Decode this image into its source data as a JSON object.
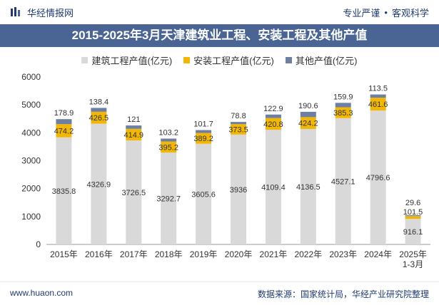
{
  "header": {
    "brand": "华经情报网",
    "tag1": "专业严谨",
    "separator": "•",
    "tag2": "客观科学"
  },
  "footer": {
    "website": "www.huaon.com",
    "source_label": "数据来源：",
    "source_text": "国家统计局，华经产业研究院整理"
  },
  "colors": {
    "building": "#d9d9d9",
    "install": "#f2b705",
    "other": "#6e7fa2",
    "title_bar": "#4a6494",
    "brand": "#1f3b6f"
  },
  "chart_data": {
    "type": "bar",
    "stacked": true,
    "title": "2015-2025年3月天津建筑业工程、安装工程及其他产值",
    "categories": [
      "2015年",
      "2016年",
      "2017年",
      "2018年",
      "2019年",
      "2020年",
      "2021年",
      "2022年",
      "2023年",
      "2024年",
      "2025年\n1-3月"
    ],
    "series": [
      {
        "name": "建筑工程产值(亿元)",
        "values": [
          3835.8,
          4326.9,
          3726.5,
          3292.7,
          3605.6,
          3936,
          4109.4,
          4136.5,
          4527.1,
          4796.6,
          916.1
        ]
      },
      {
        "name": "安装工程产值(亿元)",
        "values": [
          474.2,
          426.5,
          414.9,
          395.2,
          389.2,
          373.5,
          420.8,
          424.2,
          385.3,
          461.6,
          101.5
        ]
      },
      {
        "name": "其他产值(亿元)",
        "values": [
          178.9,
          138.4,
          121,
          103.2,
          101.7,
          78.8,
          122.9,
          190.6,
          159.9,
          113.5,
          29.6
        ]
      }
    ],
    "ylim": [
      0,
      6000
    ],
    "yticks": [
      0,
      1000,
      2000,
      3000,
      4000,
      5000,
      6000
    ],
    "legend_position": "top",
    "grid": false
  }
}
